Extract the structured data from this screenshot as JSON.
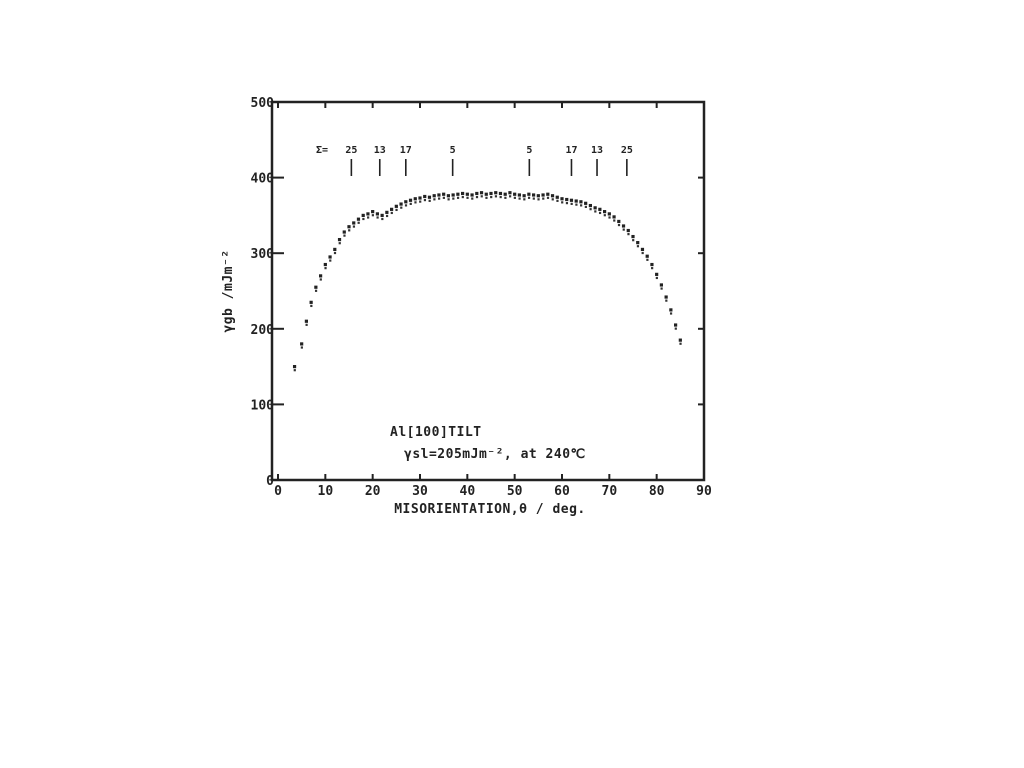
{
  "chart_data": {
    "type": "scatter",
    "title": "",
    "xlabel": "MISORIENTATION,θ  / deg.",
    "ylabel": "γgb  /mJm⁻²",
    "xlim": [
      0,
      90
    ],
    "ylim": [
      0,
      500
    ],
    "x_ticks": [
      0,
      10,
      20,
      30,
      40,
      50,
      60,
      70,
      80,
      90
    ],
    "x_tick_labels": [
      "0",
      "10",
      "20",
      "30",
      "40",
      "50",
      "60",
      "70",
      "80",
      "90"
    ],
    "y_ticks": [
      0,
      100,
      200,
      300,
      400,
      500
    ],
    "y_tick_labels": [
      "0",
      "100",
      "200",
      "300",
      "400",
      "500"
    ],
    "grid": false,
    "annotations": {
      "line1": "Al[100]TILT",
      "line2": "γsl=205mJm⁻², at 240℃"
    },
    "sigma_prefix": "Σ=",
    "sigma_markers": [
      {
        "label": "25",
        "x": 15.5
      },
      {
        "label": "13",
        "x": 21.5
      },
      {
        "label": "17",
        "x": 27
      },
      {
        "label": "5",
        "x": 36.9
      },
      {
        "label": "5",
        "x": 53.1
      },
      {
        "label": "17",
        "x": 62
      },
      {
        "label": "13",
        "x": 67.4
      },
      {
        "label": "25",
        "x": 73.7
      }
    ],
    "series": [
      {
        "x": [
          3.5,
          5,
          6,
          7,
          8,
          9,
          10,
          11,
          12,
          13,
          14,
          15,
          16,
          17,
          18,
          19,
          20,
          21,
          22,
          23,
          24,
          25,
          26,
          27,
          28,
          29,
          30,
          31,
          32,
          33,
          34,
          35,
          36,
          37,
          38,
          39,
          40,
          41,
          42,
          43,
          44,
          45,
          46,
          47,
          48,
          49,
          50,
          51,
          52,
          53,
          54,
          55,
          56,
          57,
          58,
          59,
          60,
          61,
          62,
          63,
          64,
          65,
          66,
          67,
          68,
          69,
          70,
          71,
          72,
          73,
          74,
          75,
          76,
          77,
          78,
          79,
          80,
          81,
          82,
          83,
          84,
          85
        ],
        "y": [
          150,
          180,
          210,
          235,
          255,
          270,
          285,
          295,
          305,
          318,
          328,
          335,
          340,
          345,
          350,
          352,
          355,
          352,
          350,
          354,
          358,
          362,
          365,
          368,
          370,
          372,
          373,
          375,
          374,
          376,
          377,
          378,
          376,
          377,
          378,
          379,
          378,
          377,
          379,
          380,
          378,
          379,
          380,
          379,
          378,
          380,
          378,
          377,
          376,
          378,
          377,
          376,
          377,
          378,
          376,
          374,
          372,
          371,
          370,
          369,
          368,
          366,
          363,
          360,
          358,
          355,
          352,
          348,
          342,
          336,
          330,
          322,
          314,
          305,
          296,
          285,
          272,
          258,
          242,
          225,
          205,
          185
        ]
      }
    ]
  }
}
